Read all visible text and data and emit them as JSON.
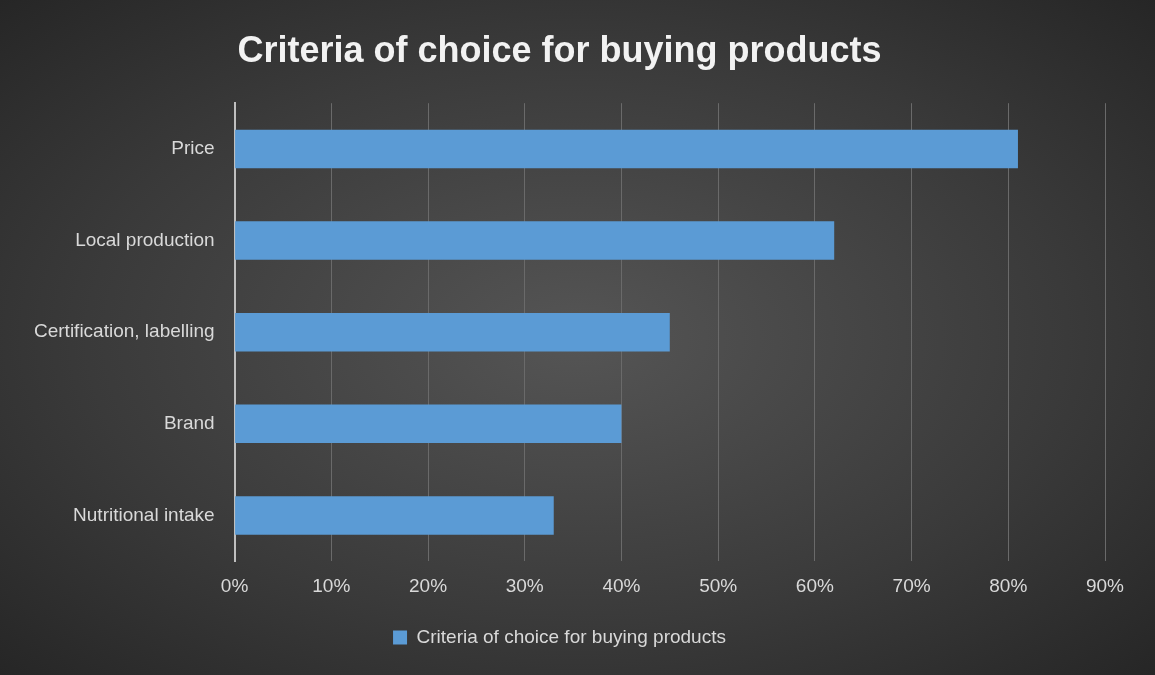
{
  "chart_data": {
    "type": "bar",
    "orientation": "horizontal",
    "title": "Criteria of choice for buying products",
    "categories": [
      "Price",
      "Local production",
      "Certification, labelling",
      "Brand",
      "Nutritional intake"
    ],
    "series": [
      {
        "name": "Criteria of choice for buying products",
        "color": "#5b9bd5",
        "values": [
          81,
          62,
          45,
          40,
          33
        ]
      }
    ],
    "xlim": [
      0,
      90
    ],
    "xticks": [
      {
        "value": 0,
        "label": "0%"
      },
      {
        "value": 10,
        "label": "10%"
      },
      {
        "value": 20,
        "label": "20%"
      },
      {
        "value": 30,
        "label": "30%"
      },
      {
        "value": 40,
        "label": "40%"
      },
      {
        "value": 50,
        "label": "50%"
      },
      {
        "value": 60,
        "label": "60%"
      },
      {
        "value": 70,
        "label": "70%"
      },
      {
        "value": 80,
        "label": "80%"
      },
      {
        "value": 90,
        "label": "90%"
      }
    ],
    "grid": "x",
    "legend": "bottom"
  }
}
